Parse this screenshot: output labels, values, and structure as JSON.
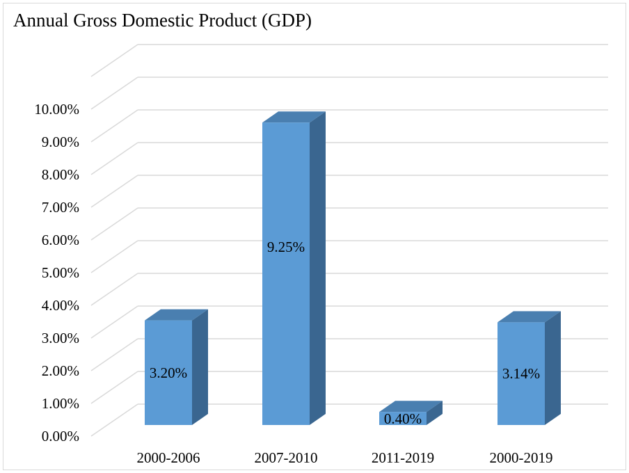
{
  "chart_data": {
    "type": "bar",
    "title": "Annual Gross Domestic Product (GDP)",
    "categories": [
      "2000-2006",
      "2007-2010",
      "2011-2019",
      "2000-2019"
    ],
    "values": [
      3.2,
      9.25,
      0.4,
      3.14
    ],
    "value_labels": [
      "3.20%",
      "9.25%",
      "0.40%",
      "3.14%"
    ],
    "y_ticks": [
      "0.00%",
      "1.00%",
      "2.00%",
      "3.00%",
      "4.00%",
      "5.00%",
      "6.00%",
      "7.00%",
      "8.00%",
      "9.00%",
      "10.00%"
    ],
    "ylim": [
      0,
      10
    ],
    "xlabel": "",
    "ylabel": "",
    "grid": true,
    "legend": "none",
    "style": "3d-column",
    "colors": {
      "bar_front": "#5b9bd5",
      "bar_side": "#3a6690",
      "bar_top": "#4a7fb0",
      "gridline": "#d9d9d9",
      "frame": "#d9d9d9"
    }
  }
}
